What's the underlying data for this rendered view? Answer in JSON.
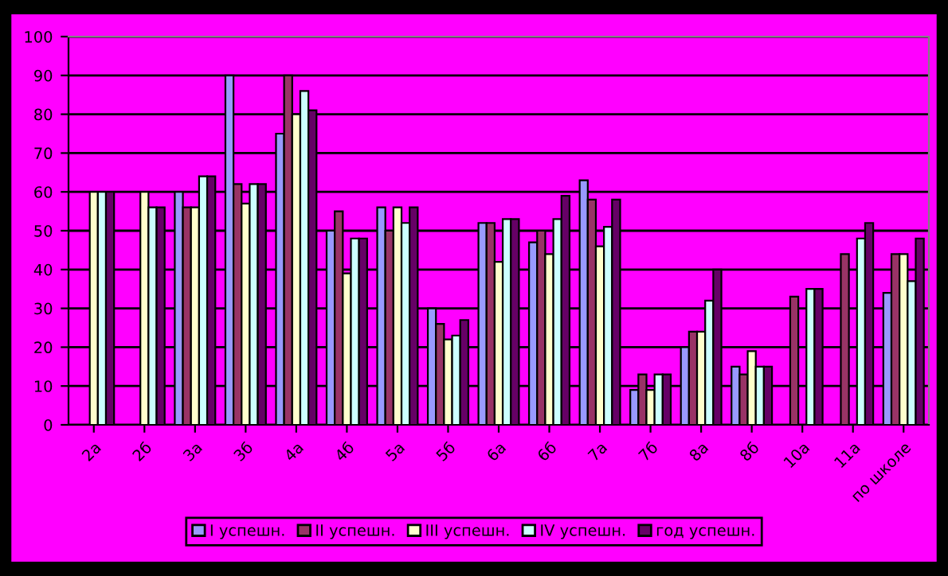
{
  "chart_data": {
    "type": "bar",
    "categories": [
      "2а",
      "2б",
      "3а",
      "3б",
      "4а",
      "4б",
      "5а",
      "5б",
      "6а",
      "6б",
      "7а",
      "7б",
      "8а",
      "8б",
      "10а",
      "11а",
      "по школе"
    ],
    "series": [
      {
        "name": "I успешн.",
        "color": "#9999ff",
        "values": [
          null,
          null,
          60,
          90,
          75,
          50,
          56,
          30,
          52,
          47,
          63,
          9,
          20,
          15,
          null,
          null,
          34
        ]
      },
      {
        "name": "II успешн.",
        "color": "#993366",
        "values": [
          null,
          null,
          56,
          62,
          90,
          55,
          50,
          26,
          52,
          50,
          58,
          13,
          24,
          13,
          33,
          44,
          44
        ]
      },
      {
        "name": "III успешн.",
        "color": "#ffffcc",
        "values": [
          60,
          60,
          56,
          57,
          80,
          39,
          56,
          22,
          42,
          44,
          46,
          9,
          24,
          19,
          null,
          null,
          44
        ]
      },
      {
        "name": "IV успешн.",
        "color": "#ccffff",
        "values": [
          60,
          56,
          64,
          62,
          86,
          48,
          52,
          23,
          53,
          53,
          51,
          13,
          32,
          15,
          35,
          48,
          37
        ]
      },
      {
        "name": "год успешн.",
        "color": "#660066",
        "values": [
          60,
          56,
          64,
          62,
          81,
          48,
          56,
          27,
          53,
          59,
          58,
          13,
          40,
          15,
          35,
          52,
          48
        ]
      }
    ],
    "ylim": [
      0,
      100
    ],
    "yticks": [
      0,
      10,
      20,
      30,
      40,
      50,
      60,
      70,
      80,
      90,
      100
    ],
    "grid": "y",
    "legend": "bottom"
  }
}
